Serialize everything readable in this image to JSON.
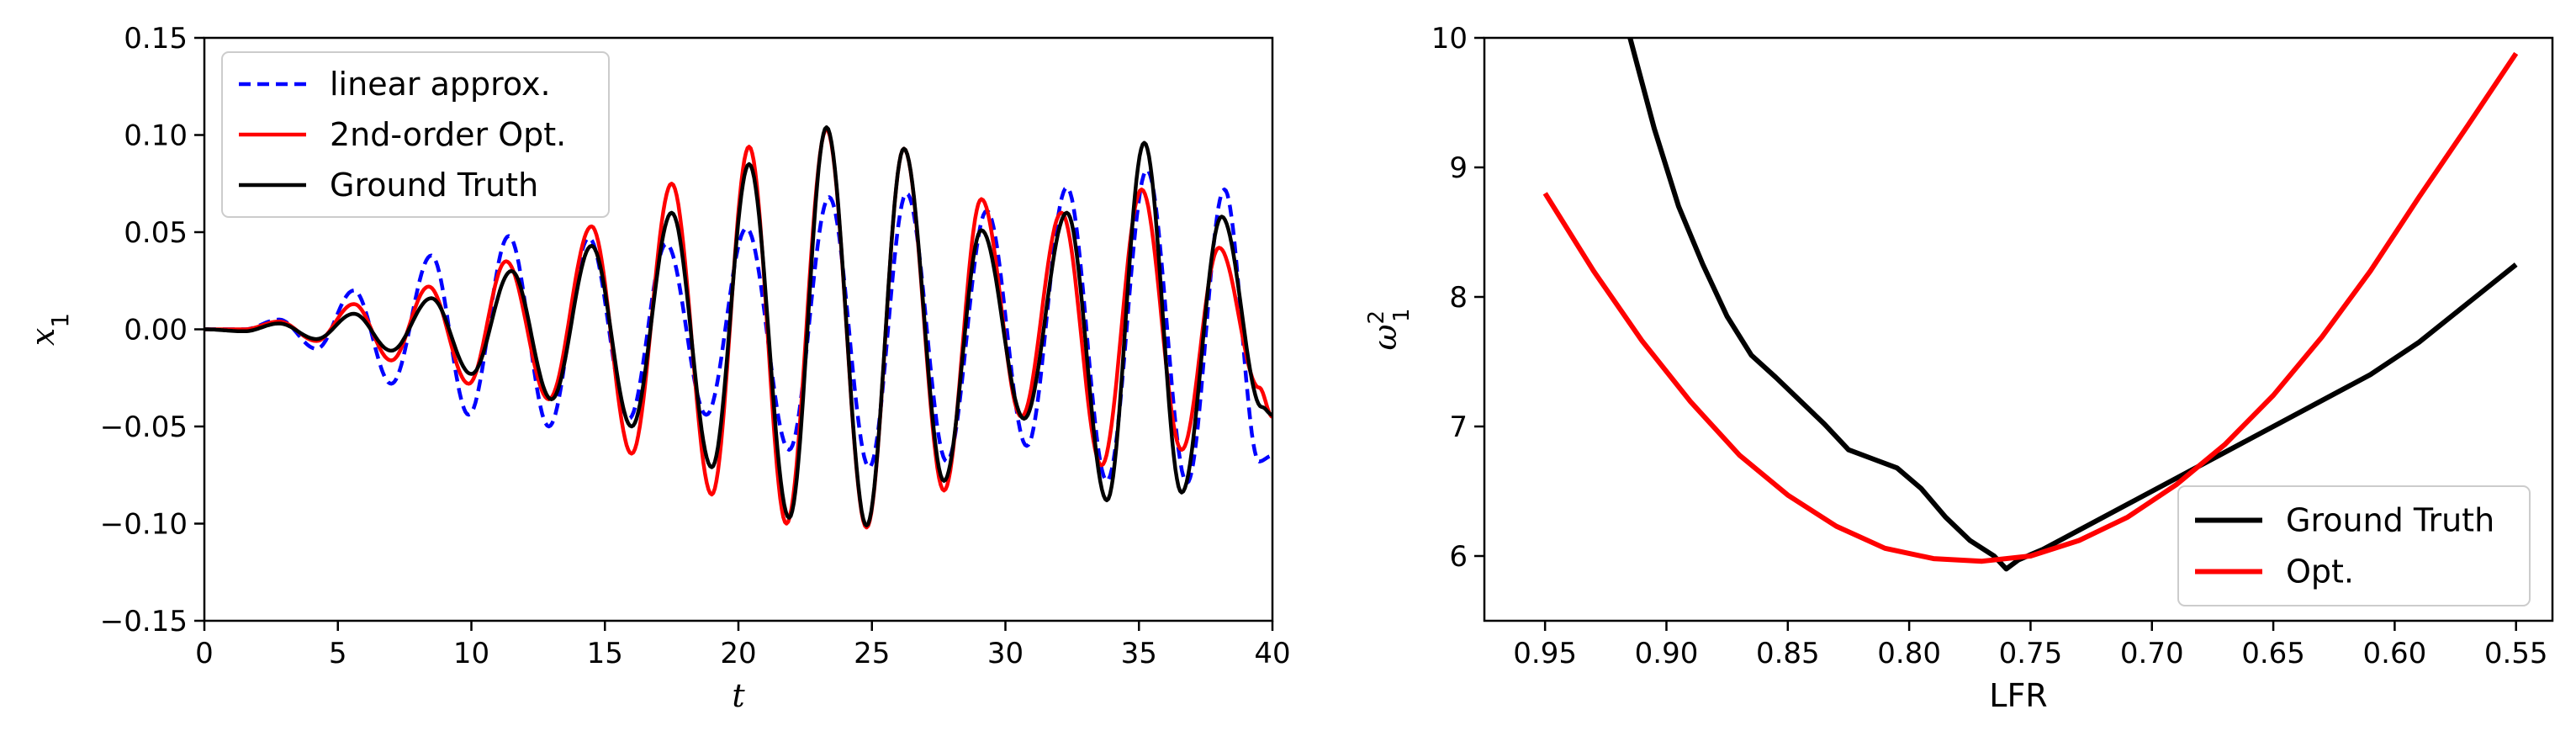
{
  "chart_data": [
    {
      "type": "line",
      "xlabel": "t",
      "ylabel": "x",
      "ylabel_sub": "1",
      "xlim": [
        0,
        40
      ],
      "ylim": [
        -0.15,
        0.15
      ],
      "xticks": [
        0,
        5,
        10,
        15,
        20,
        25,
        30,
        35,
        40
      ],
      "xtick_labels": [
        "0",
        "5",
        "10",
        "15",
        "20",
        "25",
        "30",
        "35",
        "40"
      ],
      "yticks": [
        -0.15,
        -0.1,
        -0.05,
        0.0,
        0.05,
        0.1,
        0.15
      ],
      "ytick_labels": [
        "−0.15",
        "−0.10",
        "−0.05",
        "0.00",
        "0.05",
        "0.10",
        "0.15"
      ],
      "grid": false,
      "legend_position": "top-left",
      "series": [
        {
          "name": "linear approx.",
          "color": "#0000ff",
          "style": "dashed",
          "x": [
            0,
            1.5,
            2.8,
            4.2,
            5.6,
            7.0,
            8.5,
            9.9,
            11.4,
            12.9,
            14.4,
            15.9,
            17.3,
            18.8,
            20.3,
            21.9,
            23.4,
            24.9,
            26.3,
            27.8,
            29.3,
            30.8,
            32.3,
            33.8,
            35.3,
            36.8,
            38.2,
            39.5,
            40
          ],
          "y": [
            0,
            0.0,
            0.005,
            -0.01,
            0.02,
            -0.028,
            0.038,
            -0.044,
            0.048,
            -0.05,
            0.047,
            -0.046,
            0.044,
            -0.044,
            0.052,
            -0.062,
            0.068,
            -0.071,
            0.07,
            -0.068,
            0.061,
            -0.06,
            0.073,
            -0.078,
            0.082,
            -0.079,
            0.072,
            -0.068,
            -0.065
          ]
        },
        {
          "name": "2nd-order Opt.",
          "color": "#ff0000",
          "style": "solid",
          "x": [
            0,
            1.5,
            2.8,
            4.2,
            5.6,
            7.0,
            8.4,
            9.9,
            11.3,
            12.9,
            14.5,
            16.0,
            17.5,
            19.0,
            20.4,
            21.8,
            23.3,
            24.8,
            26.2,
            27.7,
            29.1,
            30.6,
            32.1,
            33.6,
            35.1,
            36.6,
            38.0,
            39.5,
            40
          ],
          "y": [
            0,
            0.0,
            0.004,
            -0.006,
            0.013,
            -0.016,
            0.022,
            -0.028,
            0.035,
            -0.036,
            0.053,
            -0.064,
            0.075,
            -0.085,
            0.094,
            -0.1,
            0.103,
            -0.102,
            0.093,
            -0.083,
            0.067,
            -0.045,
            0.06,
            -0.07,
            0.072,
            -0.062,
            0.042,
            -0.03,
            -0.045
          ]
        },
        {
          "name": "Ground Truth",
          "color": "#000000",
          "style": "solid",
          "x": [
            0,
            1.5,
            2.8,
            4.2,
            5.6,
            7.0,
            8.5,
            10.0,
            11.5,
            13.0,
            14.5,
            16.0,
            17.5,
            19.0,
            20.4,
            21.9,
            23.3,
            24.8,
            26.2,
            27.7,
            29.1,
            30.7,
            32.3,
            33.8,
            35.2,
            36.6,
            38.1,
            39.6,
            40
          ],
          "y": [
            0,
            -0.001,
            0.003,
            -0.005,
            0.008,
            -0.011,
            0.016,
            -0.023,
            0.03,
            -0.036,
            0.043,
            -0.05,
            0.06,
            -0.071,
            0.085,
            -0.097,
            0.104,
            -0.101,
            0.093,
            -0.078,
            0.051,
            -0.046,
            0.06,
            -0.088,
            0.096,
            -0.084,
            0.058,
            -0.04,
            -0.044
          ]
        }
      ]
    },
    {
      "type": "line",
      "xlabel": "LFR",
      "ylabel": "ω",
      "ylabel_sub": "1",
      "ylabel_sup": "2",
      "xlim": [
        0.975,
        0.535
      ],
      "x_inverted": true,
      "ylim": [
        5.5,
        10
      ],
      "xticks": [
        0.95,
        0.9,
        0.85,
        0.8,
        0.75,
        0.7,
        0.65,
        0.6,
        0.55
      ],
      "xtick_labels": [
        "0.95",
        "0.90",
        "0.85",
        "0.80",
        "0.75",
        "0.70",
        "0.65",
        "0.60",
        "0.55"
      ],
      "yticks": [
        6,
        7,
        8,
        9,
        10
      ],
      "ytick_labels": [
        "6",
        "7",
        "8",
        "9",
        "10"
      ],
      "grid": false,
      "legend_position": "bottom-right",
      "series": [
        {
          "name": "Ground Truth",
          "color": "#000000",
          "x": [
            0.915,
            0.905,
            0.895,
            0.885,
            0.875,
            0.865,
            0.855,
            0.845,
            0.835,
            0.825,
            0.815,
            0.805,
            0.795,
            0.785,
            0.775,
            0.765,
            0.76,
            0.755,
            0.745,
            0.73,
            0.71,
            0.69,
            0.67,
            0.65,
            0.63,
            0.61,
            0.59,
            0.57,
            0.55
          ],
          "y": [
            10.0,
            9.3,
            8.7,
            8.25,
            7.85,
            7.55,
            7.38,
            7.2,
            7.02,
            6.82,
            6.75,
            6.68,
            6.52,
            6.3,
            6.12,
            6.0,
            5.9,
            5.97,
            6.05,
            6.2,
            6.4,
            6.6,
            6.8,
            7.0,
            7.2,
            7.4,
            7.65,
            7.95,
            8.25
          ]
        },
        {
          "name": "Opt.",
          "color": "#ff0000",
          "x": [
            0.95,
            0.93,
            0.91,
            0.89,
            0.87,
            0.85,
            0.83,
            0.81,
            0.79,
            0.77,
            0.75,
            0.73,
            0.71,
            0.69,
            0.67,
            0.65,
            0.63,
            0.61,
            0.59,
            0.57,
            0.55
          ],
          "y": [
            8.8,
            8.2,
            7.66,
            7.19,
            6.78,
            6.47,
            6.23,
            6.06,
            5.98,
            5.96,
            6.0,
            6.12,
            6.3,
            6.55,
            6.86,
            7.24,
            7.69,
            8.2,
            8.77,
            9.32,
            9.88
          ]
        }
      ]
    }
  ]
}
